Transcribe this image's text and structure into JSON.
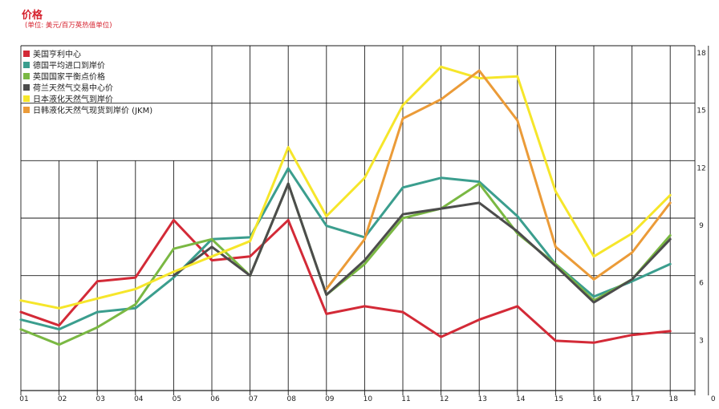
{
  "header": {
    "title": "价格",
    "subtitle": "(单位: 美元/百万英热值单位)"
  },
  "chart_data": {
    "type": "line",
    "title": "价格",
    "subtitle": "(单位: 美元/百万英热值单位)",
    "x": [
      "01",
      "02",
      "03",
      "04",
      "05",
      "06",
      "07",
      "08",
      "09",
      "10",
      "11",
      "12",
      "13",
      "14",
      "15",
      "16",
      "17",
      "18"
    ],
    "x_trailing_tick": "0",
    "y_tick_labels": [
      "3",
      "6",
      "9",
      "12",
      "15",
      "18"
    ],
    "ylim": [
      0,
      18
    ],
    "grid": true,
    "legend_position": "top-left",
    "series": [
      {
        "name": "美国亨利中心",
        "color": "#d32a37",
        "values": [
          4.1,
          3.4,
          5.7,
          5.9,
          8.9,
          6.8,
          7.0,
          8.9,
          4.0,
          4.4,
          4.1,
          2.8,
          3.7,
          4.4,
          2.6,
          2.5,
          2.9,
          3.1
        ]
      },
      {
        "name": "德国平均进口到岸价",
        "color": "#3b9e8e",
        "values": [
          3.7,
          3.2,
          4.1,
          4.3,
          5.9,
          7.9,
          8.0,
          11.6,
          8.6,
          8.0,
          10.6,
          11.1,
          10.9,
          9.1,
          6.6,
          4.9,
          5.7,
          6.6
        ]
      },
      {
        "name": "英国国家平衡点价格",
        "color": "#7ab843",
        "values": [
          3.2,
          2.4,
          3.3,
          4.5,
          7.4,
          7.9,
          6.0,
          10.8,
          5.0,
          6.6,
          9.0,
          9.5,
          10.8,
          8.2,
          6.6,
          4.7,
          5.8,
          8.1
        ]
      },
      {
        "name": "荷兰天然气交易中心价",
        "color": "#4c4c4c",
        "values": [
          null,
          null,
          null,
          null,
          6.0,
          7.5,
          6.0,
          10.8,
          5.0,
          6.8,
          9.2,
          9.5,
          9.8,
          8.3,
          6.5,
          4.6,
          5.8,
          7.9
        ]
      },
      {
        "name": "日本液化天然气到岸价",
        "color": "#f6e62a",
        "values": [
          4.7,
          4.3,
          4.8,
          5.3,
          6.2,
          7.0,
          7.8,
          12.7,
          9.1,
          11.1,
          14.9,
          16.9,
          16.3,
          16.4,
          10.4,
          7.0,
          8.2,
          10.2
        ]
      },
      {
        "name": "日韩液化天然气现货到岸价 (JKM)",
        "color": "#eb9b38",
        "values": [
          null,
          null,
          null,
          null,
          null,
          null,
          null,
          null,
          5.3,
          7.9,
          14.2,
          15.2,
          16.7,
          14.1,
          7.5,
          5.8,
          7.2,
          9.8
        ]
      }
    ]
  }
}
